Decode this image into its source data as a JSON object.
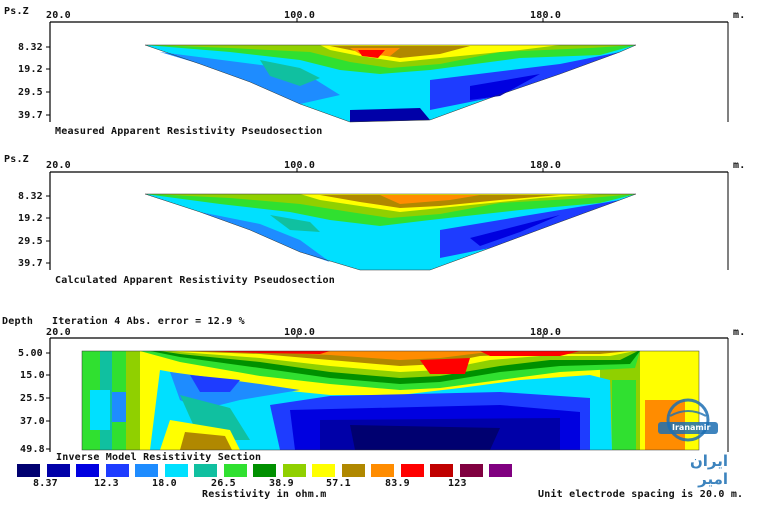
{
  "panels": [
    {
      "id": "measured",
      "axis_label": "Ps.Z",
      "x_ticks": [
        "20.0",
        "100.0",
        "180.0"
      ],
      "x_unit": "m.",
      "depth_ticks": [
        "8.32",
        "19.2",
        "29.5",
        "39.7"
      ],
      "caption": "Measured Apparent Resistivity Pseudosection"
    },
    {
      "id": "calculated",
      "axis_label": "Ps.Z",
      "x_ticks": [
        "20.0",
        "100.0",
        "180.0"
      ],
      "x_unit": "m.",
      "depth_ticks": [
        "8.32",
        "19.2",
        "29.5",
        "39.7"
      ],
      "caption": "Calculated Apparent Resistivity Pseudosection"
    },
    {
      "id": "inverse",
      "axis_label": "Depth",
      "header_note": "Iteration 4 Abs. error = 12.9 %",
      "x_ticks": [
        "20.0",
        "100.0",
        "180.0"
      ],
      "x_unit": "m.",
      "depth_ticks": [
        "5.00",
        "15.0",
        "25.5",
        "37.0",
        "49.8"
      ],
      "caption": "Inverse Model Resistivity Section"
    }
  ],
  "legend": {
    "colors": [
      "#000070",
      "#0000a8",
      "#0000e0",
      "#1e3cff",
      "#1e8cff",
      "#00e0ff",
      "#10c0a0",
      "#30e030",
      "#009000",
      "#90d000",
      "#ffff00",
      "#b08800",
      "#ff8c00",
      "#ff0000",
      "#c00000",
      "#800040",
      "#800080"
    ],
    "labels": [
      "8.37",
      "12.3",
      "18.0",
      "26.5",
      "38.9",
      "57.1",
      "83.9",
      "123"
    ],
    "unit_label": "Resistivity in ohm.m"
  },
  "footer_note": "Unit electrode spacing is 20.0 m.",
  "watermark": {
    "brand_latin": "Iranamir",
    "brand_persian": "ایران امیر"
  },
  "chart_data": [
    {
      "type": "heatmap",
      "title": "Measured Apparent Resistivity Pseudosection",
      "ylabel": "Ps.Z",
      "x_ticks": [
        20.0,
        100.0,
        180.0
      ],
      "y_ticks": [
        8.32,
        19.2,
        29.5,
        39.7
      ],
      "x_unit": "m."
    },
    {
      "type": "heatmap",
      "title": "Calculated Apparent Resistivity Pseudosection",
      "ylabel": "Ps.Z",
      "x_ticks": [
        20.0,
        100.0,
        180.0
      ],
      "y_ticks": [
        8.32,
        19.2,
        29.5,
        39.7
      ],
      "x_unit": "m."
    },
    {
      "type": "heatmap",
      "title": "Inverse Model Resistivity Section",
      "ylabel": "Depth",
      "x_ticks": [
        20.0,
        100.0,
        180.0
      ],
      "y_ticks": [
        5.0,
        15.0,
        25.5,
        37.0,
        49.8
      ],
      "x_unit": "m.",
      "color_scale_ohm_m": [
        8.37,
        12.3,
        18.0,
        26.5,
        38.9,
        57.1,
        83.9,
        123
      ]
    }
  ]
}
